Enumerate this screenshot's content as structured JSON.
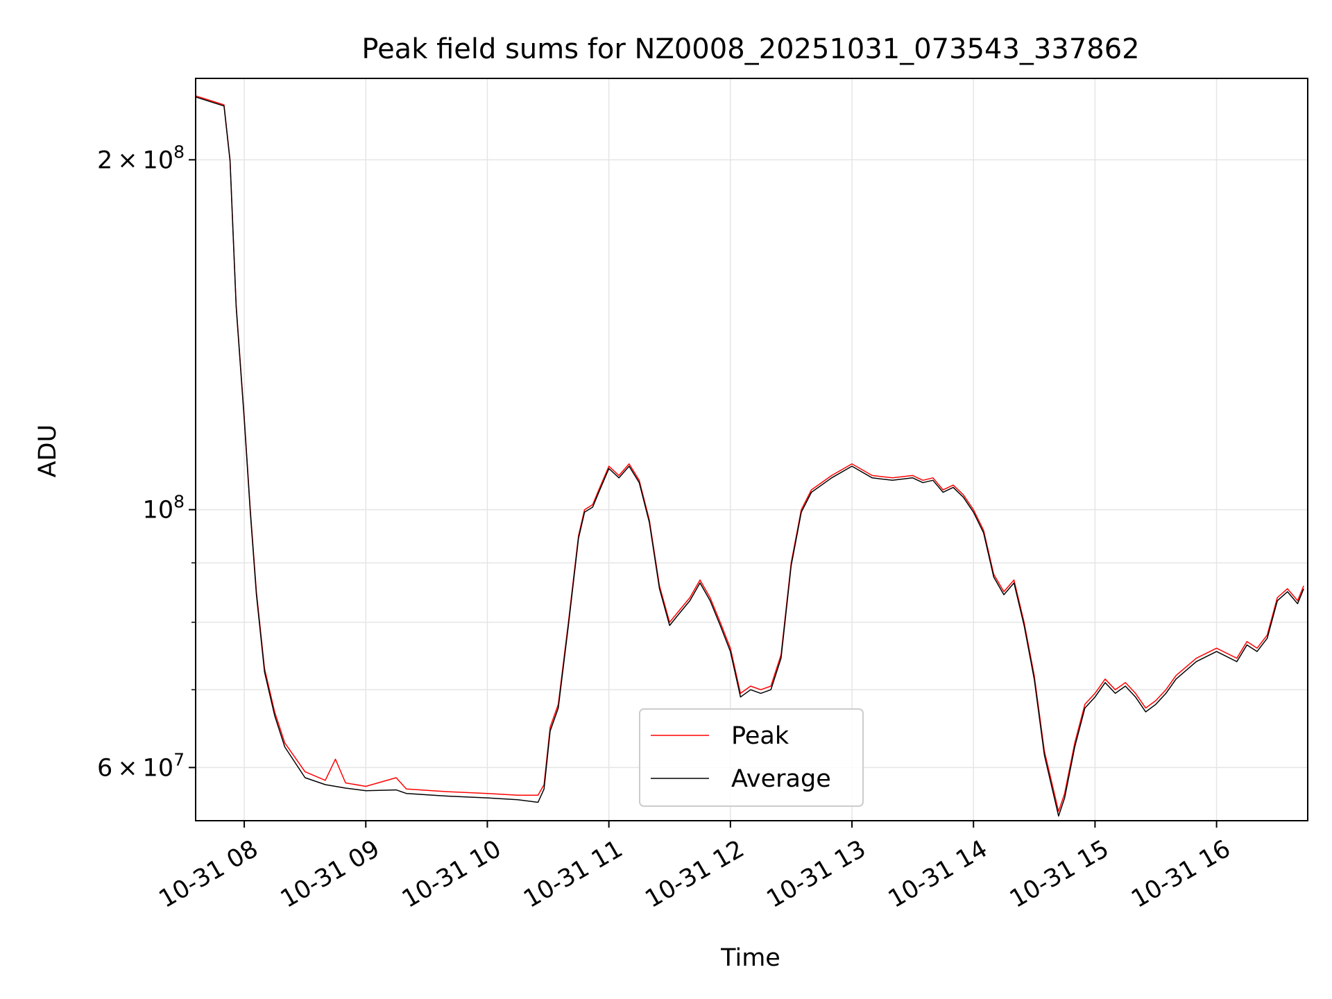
{
  "chart_data": {
    "type": "line",
    "title": "Peak field sums for NZ0008_20251031_073543_337862",
    "xlabel": "Time",
    "ylabel": "ADU",
    "y_scale": "log",
    "ylim": [
      54000000,
      235000000
    ],
    "xlim": [
      "2025-10-31 07:36",
      "2025-10-31 16:45"
    ],
    "x_ticks": [
      {
        "time": "2025-10-31 08:00",
        "label": "10-31 08"
      },
      {
        "time": "2025-10-31 09:00",
        "label": "10-31 09"
      },
      {
        "time": "2025-10-31 10:00",
        "label": "10-31 10"
      },
      {
        "time": "2025-10-31 11:00",
        "label": "10-31 11"
      },
      {
        "time": "2025-10-31 12:00",
        "label": "10-31 12"
      },
      {
        "time": "2025-10-31 13:00",
        "label": "10-31 13"
      },
      {
        "time": "2025-10-31 14:00",
        "label": "10-31 14"
      },
      {
        "time": "2025-10-31 15:00",
        "label": "10-31 15"
      },
      {
        "time": "2025-10-31 16:00",
        "label": "10-31 16"
      }
    ],
    "y_major_ticks": [
      {
        "value": 60000000,
        "mant": "6",
        "exp": "7"
      },
      {
        "value": 100000000,
        "mant": "",
        "exp": "8"
      },
      {
        "value": 200000000,
        "mant": "2",
        "exp": "8"
      }
    ],
    "y_minor_ticks": [
      70000000,
      80000000,
      90000000
    ],
    "grid": true,
    "legend_position": "bottom-center",
    "series": [
      {
        "name": "Peak",
        "color": "#ff0000",
        "points": [
          [
            "2025-10-31 07:36",
            227000000
          ],
          [
            "2025-10-31 07:50",
            223000000
          ],
          [
            "2025-10-31 07:53",
            200000000
          ],
          [
            "2025-10-31 07:56",
            150000000
          ],
          [
            "2025-10-31 08:00",
            120000000
          ],
          [
            "2025-10-31 08:03",
            100000000
          ],
          [
            "2025-10-31 08:06",
            85000000
          ],
          [
            "2025-10-31 08:10",
            73000000
          ],
          [
            "2025-10-31 08:15",
            67000000
          ],
          [
            "2025-10-31 08:20",
            63000000
          ],
          [
            "2025-10-31 08:30",
            59500000
          ],
          [
            "2025-10-31 08:40",
            58500000
          ],
          [
            "2025-10-31 08:45",
            61000000
          ],
          [
            "2025-10-31 08:50",
            58200000
          ],
          [
            "2025-10-31 09:00",
            57800000
          ],
          [
            "2025-10-31 09:15",
            58800000
          ],
          [
            "2025-10-31 09:20",
            57500000
          ],
          [
            "2025-10-31 09:40",
            57200000
          ],
          [
            "2025-10-31 10:00",
            57000000
          ],
          [
            "2025-10-31 10:15",
            56800000
          ],
          [
            "2025-10-31 10:25",
            56800000
          ],
          [
            "2025-10-31 10:28",
            58000000
          ],
          [
            "2025-10-31 10:31",
            65000000
          ],
          [
            "2025-10-31 10:35",
            68000000
          ],
          [
            "2025-10-31 10:40",
            80000000
          ],
          [
            "2025-10-31 10:45",
            95000000
          ],
          [
            "2025-10-31 10:48",
            100000000
          ],
          [
            "2025-10-31 10:52",
            101000000
          ],
          [
            "2025-10-31 10:55",
            104000000
          ],
          [
            "2025-10-31 11:00",
            109000000
          ],
          [
            "2025-10-31 11:05",
            107000000
          ],
          [
            "2025-10-31 11:10",
            109500000
          ],
          [
            "2025-10-31 11:15",
            106000000
          ],
          [
            "2025-10-31 11:20",
            98000000
          ],
          [
            "2025-10-31 11:25",
            86000000
          ],
          [
            "2025-10-31 11:30",
            80000000
          ],
          [
            "2025-10-31 11:35",
            82000000
          ],
          [
            "2025-10-31 11:40",
            84000000
          ],
          [
            "2025-10-31 11:45",
            87000000
          ],
          [
            "2025-10-31 11:50",
            84000000
          ],
          [
            "2025-10-31 11:55",
            80000000
          ],
          [
            "2025-10-31 12:00",
            76000000
          ],
          [
            "2025-10-31 12:05",
            69500000
          ],
          [
            "2025-10-31 12:10",
            70500000
          ],
          [
            "2025-10-31 12:15",
            70000000
          ],
          [
            "2025-10-31 12:20",
            70500000
          ],
          [
            "2025-10-31 12:25",
            75000000
          ],
          [
            "2025-10-31 12:30",
            90000000
          ],
          [
            "2025-10-31 12:35",
            100000000
          ],
          [
            "2025-10-31 12:40",
            104000000
          ],
          [
            "2025-10-31 12:50",
            107000000
          ],
          [
            "2025-10-31 13:00",
            109500000
          ],
          [
            "2025-10-31 13:10",
            107000000
          ],
          [
            "2025-10-31 13:20",
            106500000
          ],
          [
            "2025-10-31 13:30",
            107000000
          ],
          [
            "2025-10-31 13:35",
            106000000
          ],
          [
            "2025-10-31 13:40",
            106500000
          ],
          [
            "2025-10-31 13:45",
            104000000
          ],
          [
            "2025-10-31 13:50",
            105000000
          ],
          [
            "2025-10-31 13:55",
            103000000
          ],
          [
            "2025-10-31 14:00",
            100000000
          ],
          [
            "2025-10-31 14:05",
            96000000
          ],
          [
            "2025-10-31 14:10",
            88000000
          ],
          [
            "2025-10-31 14:15",
            85000000
          ],
          [
            "2025-10-31 14:20",
            87000000
          ],
          [
            "2025-10-31 14:25",
            80000000
          ],
          [
            "2025-10-31 14:30",
            72000000
          ],
          [
            "2025-10-31 14:35",
            62000000
          ],
          [
            "2025-10-31 14:42",
            55000000
          ],
          [
            "2025-10-31 14:45",
            57000000
          ],
          [
            "2025-10-31 14:50",
            63000000
          ],
          [
            "2025-10-31 14:55",
            68000000
          ],
          [
            "2025-10-31 15:00",
            69500000
          ],
          [
            "2025-10-31 15:05",
            71500000
          ],
          [
            "2025-10-31 15:10",
            70000000
          ],
          [
            "2025-10-31 15:15",
            71000000
          ],
          [
            "2025-10-31 15:20",
            69500000
          ],
          [
            "2025-10-31 15:25",
            67500000
          ],
          [
            "2025-10-31 15:30",
            68500000
          ],
          [
            "2025-10-31 15:35",
            70000000
          ],
          [
            "2025-10-31 15:40",
            72000000
          ],
          [
            "2025-10-31 15:50",
            74500000
          ],
          [
            "2025-10-31 16:00",
            76000000
          ],
          [
            "2025-10-31 16:10",
            74500000
          ],
          [
            "2025-10-31 16:15",
            77000000
          ],
          [
            "2025-10-31 16:20",
            76000000
          ],
          [
            "2025-10-31 16:25",
            78000000
          ],
          [
            "2025-10-31 16:30",
            84000000
          ],
          [
            "2025-10-31 16:35",
            85500000
          ],
          [
            "2025-10-31 16:40",
            83500000
          ],
          [
            "2025-10-31 16:43",
            86000000
          ]
        ]
      },
      {
        "name": "Average",
        "color": "#000000",
        "points": [
          [
            "2025-10-31 07:36",
            226500000
          ],
          [
            "2025-10-31 07:50",
            222500000
          ],
          [
            "2025-10-31 07:53",
            199500000
          ],
          [
            "2025-10-31 07:56",
            149500000
          ],
          [
            "2025-10-31 08:00",
            119500000
          ],
          [
            "2025-10-31 08:03",
            99500000
          ],
          [
            "2025-10-31 08:06",
            84500000
          ],
          [
            "2025-10-31 08:10",
            72500000
          ],
          [
            "2025-10-31 08:15",
            66500000
          ],
          [
            "2025-10-31 08:20",
            62500000
          ],
          [
            "2025-10-31 08:30",
            58800000
          ],
          [
            "2025-10-31 08:40",
            58000000
          ],
          [
            "2025-10-31 08:45",
            57800000
          ],
          [
            "2025-10-31 08:50",
            57600000
          ],
          [
            "2025-10-31 09:00",
            57300000
          ],
          [
            "2025-10-31 09:15",
            57400000
          ],
          [
            "2025-10-31 09:20",
            57000000
          ],
          [
            "2025-10-31 09:40",
            56700000
          ],
          [
            "2025-10-31 10:00",
            56500000
          ],
          [
            "2025-10-31 10:15",
            56300000
          ],
          [
            "2025-10-31 10:25",
            56000000
          ],
          [
            "2025-10-31 10:28",
            57500000
          ],
          [
            "2025-10-31 10:31",
            64500000
          ],
          [
            "2025-10-31 10:35",
            67500000
          ],
          [
            "2025-10-31 10:40",
            79500000
          ],
          [
            "2025-10-31 10:45",
            94500000
          ],
          [
            "2025-10-31 10:48",
            99500000
          ],
          [
            "2025-10-31 10:52",
            100500000
          ],
          [
            "2025-10-31 10:55",
            103500000
          ],
          [
            "2025-10-31 11:00",
            108500000
          ],
          [
            "2025-10-31 11:05",
            106500000
          ],
          [
            "2025-10-31 11:10",
            109000000
          ],
          [
            "2025-10-31 11:15",
            105500000
          ],
          [
            "2025-10-31 11:20",
            97500000
          ],
          [
            "2025-10-31 11:25",
            85500000
          ],
          [
            "2025-10-31 11:30",
            79500000
          ],
          [
            "2025-10-31 11:35",
            81500000
          ],
          [
            "2025-10-31 11:40",
            83500000
          ],
          [
            "2025-10-31 11:45",
            86500000
          ],
          [
            "2025-10-31 11:50",
            83500000
          ],
          [
            "2025-10-31 11:55",
            79500000
          ],
          [
            "2025-10-31 12:00",
            75500000
          ],
          [
            "2025-10-31 12:05",
            69000000
          ],
          [
            "2025-10-31 12:10",
            70000000
          ],
          [
            "2025-10-31 12:15",
            69500000
          ],
          [
            "2025-10-31 12:20",
            70000000
          ],
          [
            "2025-10-31 12:25",
            74500000
          ],
          [
            "2025-10-31 12:30",
            89500000
          ],
          [
            "2025-10-31 12:35",
            99500000
          ],
          [
            "2025-10-31 12:40",
            103500000
          ],
          [
            "2025-10-31 12:50",
            106500000
          ],
          [
            "2025-10-31 13:00",
            109000000
          ],
          [
            "2025-10-31 13:10",
            106500000
          ],
          [
            "2025-10-31 13:20",
            106000000
          ],
          [
            "2025-10-31 13:30",
            106500000
          ],
          [
            "2025-10-31 13:35",
            105500000
          ],
          [
            "2025-10-31 13:40",
            106000000
          ],
          [
            "2025-10-31 13:45",
            103500000
          ],
          [
            "2025-10-31 13:50",
            104500000
          ],
          [
            "2025-10-31 13:55",
            102500000
          ],
          [
            "2025-10-31 14:00",
            99500000
          ],
          [
            "2025-10-31 14:05",
            95500000
          ],
          [
            "2025-10-31 14:10",
            87500000
          ],
          [
            "2025-10-31 14:15",
            84500000
          ],
          [
            "2025-10-31 14:20",
            86500000
          ],
          [
            "2025-10-31 14:25",
            79500000
          ],
          [
            "2025-10-31 14:30",
            71500000
          ],
          [
            "2025-10-31 14:35",
            61500000
          ],
          [
            "2025-10-31 14:42",
            54500000
          ],
          [
            "2025-10-31 14:45",
            56500000
          ],
          [
            "2025-10-31 14:50",
            62500000
          ],
          [
            "2025-10-31 14:55",
            67500000
          ],
          [
            "2025-10-31 15:00",
            69000000
          ],
          [
            "2025-10-31 15:05",
            71000000
          ],
          [
            "2025-10-31 15:10",
            69500000
          ],
          [
            "2025-10-31 15:15",
            70500000
          ],
          [
            "2025-10-31 15:20",
            69000000
          ],
          [
            "2025-10-31 15:25",
            67000000
          ],
          [
            "2025-10-31 15:30",
            68000000
          ],
          [
            "2025-10-31 15:35",
            69500000
          ],
          [
            "2025-10-31 15:40",
            71500000
          ],
          [
            "2025-10-31 15:50",
            74000000
          ],
          [
            "2025-10-31 16:00",
            75500000
          ],
          [
            "2025-10-31 16:10",
            74000000
          ],
          [
            "2025-10-31 16:15",
            76500000
          ],
          [
            "2025-10-31 16:20",
            75500000
          ],
          [
            "2025-10-31 16:25",
            77500000
          ],
          [
            "2025-10-31 16:30",
            83500000
          ],
          [
            "2025-10-31 16:35",
            85000000
          ],
          [
            "2025-10-31 16:40",
            83000000
          ],
          [
            "2025-10-31 16:43",
            85500000
          ]
        ]
      }
    ]
  }
}
